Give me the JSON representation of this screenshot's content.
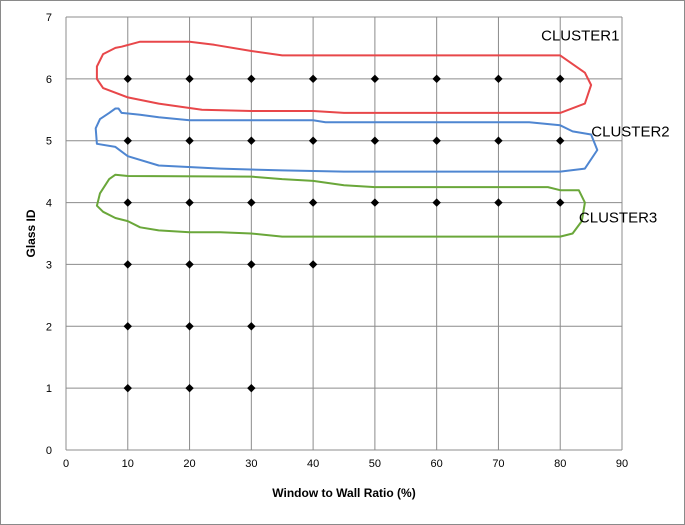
{
  "chart_data": {
    "type": "scatter",
    "xlabel": "Window to Wall Ratio (%)",
    "ylabel": "Glass ID",
    "xlim": [
      0,
      90
    ],
    "ylim": [
      0,
      7
    ],
    "xticks": [
      0,
      10,
      20,
      30,
      40,
      50,
      60,
      70,
      80,
      90
    ],
    "yticks": [
      0,
      1,
      2,
      3,
      4,
      5,
      6,
      7
    ],
    "grid": true,
    "marker": "diamond",
    "marker_color": "#000000",
    "points": [
      [
        10,
        1
      ],
      [
        20,
        1
      ],
      [
        30,
        1
      ],
      [
        10,
        2
      ],
      [
        20,
        2
      ],
      [
        30,
        2
      ],
      [
        10,
        3
      ],
      [
        20,
        3
      ],
      [
        30,
        3
      ],
      [
        40,
        3
      ],
      [
        10,
        4
      ],
      [
        20,
        4
      ],
      [
        30,
        4
      ],
      [
        40,
        4
      ],
      [
        50,
        4
      ],
      [
        60,
        4
      ],
      [
        70,
        4
      ],
      [
        80,
        4
      ],
      [
        10,
        5
      ],
      [
        20,
        5
      ],
      [
        30,
        5
      ],
      [
        40,
        5
      ],
      [
        50,
        5
      ],
      [
        60,
        5
      ],
      [
        70,
        5
      ],
      [
        80,
        5
      ],
      [
        10,
        6
      ],
      [
        20,
        6
      ],
      [
        30,
        6
      ],
      [
        40,
        6
      ],
      [
        50,
        6
      ],
      [
        60,
        6
      ],
      [
        70,
        6
      ],
      [
        80,
        6
      ]
    ],
    "annotations": [
      {
        "label": "CLUSTER1",
        "color": "#e8474a",
        "glass_id": 6,
        "outline": [
          [
            8,
            6.5
          ],
          [
            9,
            6.52
          ],
          [
            12,
            6.6
          ],
          [
            20,
            6.6
          ],
          [
            24,
            6.55
          ],
          [
            30,
            6.45
          ],
          [
            35,
            6.38
          ],
          [
            80,
            6.38
          ],
          [
            84,
            6.1
          ],
          [
            85,
            5.9
          ],
          [
            84,
            5.6
          ],
          [
            80,
            5.45
          ],
          [
            75,
            5.45
          ],
          [
            45,
            5.45
          ],
          [
            40,
            5.48
          ],
          [
            30,
            5.48
          ],
          [
            22,
            5.5
          ],
          [
            15,
            5.6
          ],
          [
            10,
            5.7
          ],
          [
            6,
            5.85
          ],
          [
            5,
            6
          ],
          [
            5,
            6.2
          ],
          [
            6,
            6.4
          ],
          [
            8,
            6.5
          ]
        ]
      },
      {
        "label": "CLUSTER2",
        "color": "#4f86d1",
        "glass_id": 5,
        "outline": [
          [
            7,
            5.45
          ],
          [
            8,
            5.52
          ],
          [
            8.5,
            5.52
          ],
          [
            9,
            5.45
          ],
          [
            12,
            5.42
          ],
          [
            15,
            5.38
          ],
          [
            20,
            5.33
          ],
          [
            40,
            5.33
          ],
          [
            42,
            5.3
          ],
          [
            75,
            5.3
          ],
          [
            80,
            5.25
          ],
          [
            82,
            5.15
          ],
          [
            85,
            5.1
          ],
          [
            86,
            4.85
          ],
          [
            84,
            4.55
          ],
          [
            80,
            4.5
          ],
          [
            45,
            4.5
          ],
          [
            35,
            4.52
          ],
          [
            25,
            4.55
          ],
          [
            15,
            4.6
          ],
          [
            10,
            4.75
          ],
          [
            8,
            4.9
          ],
          [
            5,
            4.95
          ],
          [
            4.8,
            5.2
          ],
          [
            5.5,
            5.35
          ],
          [
            7,
            5.45
          ]
        ]
      },
      {
        "label": "CLUSTER3",
        "color": "#6aa73a",
        "glass_id": 4,
        "outline": [
          [
            8,
            4.45
          ],
          [
            10,
            4.43
          ],
          [
            30,
            4.42
          ],
          [
            35,
            4.38
          ],
          [
            40,
            4.35
          ],
          [
            45,
            4.28
          ],
          [
            50,
            4.25
          ],
          [
            78,
            4.25
          ],
          [
            80,
            4.2
          ],
          [
            83,
            4.2
          ],
          [
            84,
            4.0
          ],
          [
            83.5,
            3.7
          ],
          [
            82,
            3.5
          ],
          [
            80,
            3.45
          ],
          [
            35,
            3.45
          ],
          [
            30,
            3.5
          ],
          [
            25,
            3.52
          ],
          [
            20,
            3.52
          ],
          [
            15,
            3.55
          ],
          [
            12,
            3.6
          ],
          [
            10,
            3.7
          ],
          [
            8,
            3.75
          ],
          [
            6,
            3.85
          ],
          [
            5,
            3.95
          ],
          [
            5.5,
            4.15
          ],
          [
            7,
            4.38
          ],
          [
            8,
            4.45
          ]
        ]
      }
    ]
  }
}
